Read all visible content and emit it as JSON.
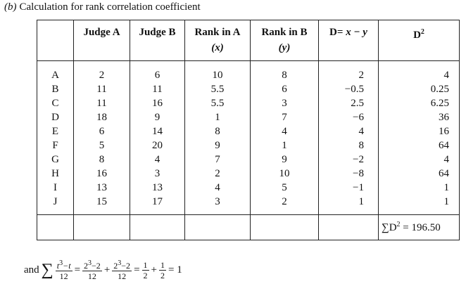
{
  "caption": {
    "label": "(b)",
    "text": "Calculation for rank correlation coefficient"
  },
  "table": {
    "corner_header": null,
    "header": [
      {
        "line1": "Judge A"
      },
      {
        "line1": "Judge B"
      },
      {
        "line1": "Rank in A",
        "line2": "(x)"
      },
      {
        "line1": "Rank in B",
        "line2": "(y)"
      },
      {
        "prefix": "D=",
        "var": "x − y"
      },
      {
        "base": "D",
        "sup": "2"
      }
    ],
    "rows": [
      [
        "A",
        "2",
        "6",
        "10",
        "8",
        "2",
        "4"
      ],
      [
        "B",
        "11",
        "11",
        "5.5",
        "6",
        "−0.5",
        "0.25"
      ],
      [
        "C",
        "11",
        "16",
        "5.5",
        "3",
        "2.5",
        "6.25"
      ],
      [
        "D",
        "18",
        "9",
        "1",
        "7",
        "−6",
        "36"
      ],
      [
        "E",
        "6",
        "14",
        "8",
        "4",
        "4",
        "16"
      ],
      [
        "F",
        "5",
        "20",
        "9",
        "1",
        "8",
        "64"
      ],
      [
        "G",
        "8",
        "4",
        "7",
        "9",
        "−2",
        "4"
      ],
      [
        "H",
        "16",
        "3",
        "2",
        "10",
        "−8",
        "64"
      ],
      [
        "I",
        "13",
        "13",
        "4",
        "5",
        "−1",
        "1"
      ],
      [
        "J",
        "15",
        "17",
        "3",
        "2",
        "1",
        "1"
      ]
    ],
    "footer": {
      "sigma": "∑",
      "base": "D",
      "sup": "2",
      "rest": " = 196.50"
    }
  },
  "formula": {
    "lead": "and",
    "sigma": "∑",
    "num": {
      "base": "t",
      "sup": "3",
      "rest": "−t"
    },
    "den": "12",
    "eq1": "=",
    "term1": {
      "num": {
        "base": "2",
        "sup": "3",
        "rest": "−2"
      },
      "den": "12"
    },
    "plus1": "+",
    "term2": {
      "num": {
        "base": "2",
        "sup": "3",
        "rest": "−2"
      },
      "den": "12"
    },
    "eq2": "=",
    "frac3": {
      "num": "1",
      "den": "2"
    },
    "plus2": "+",
    "frac4": {
      "num": "1",
      "den": "2"
    },
    "eq3": "= 1"
  }
}
